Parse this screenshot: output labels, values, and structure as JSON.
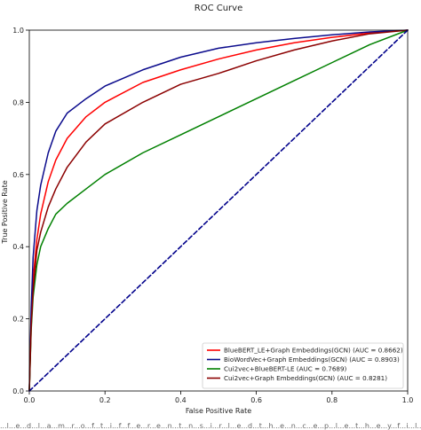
{
  "chart_data": {
    "type": "line",
    "title": "ROC Curve",
    "xlabel": "False Positive Rate",
    "ylabel": "True Positive Rate",
    "xlim": [
      0,
      1
    ],
    "ylim": [
      0,
      1
    ],
    "xticks": [
      "0.0",
      "0.2",
      "0.4",
      "0.6",
      "0.8",
      "1.0"
    ],
    "yticks": [
      "0.0",
      "0.2",
      "0.4",
      "0.6",
      "0.8",
      "1.0"
    ],
    "grid": false,
    "legend_position": "bottom-right",
    "series": [
      {
        "name": "BlueBERT_LE+Graph Embeddings(GCN) (AUC = 0.8662)",
        "color": "#ff0000",
        "x": [
          0,
          0.005,
          0.01,
          0.02,
          0.03,
          0.05,
          0.07,
          0.1,
          0.15,
          0.2,
          0.3,
          0.4,
          0.5,
          0.6,
          0.7,
          0.8,
          0.9,
          1.0
        ],
        "y": [
          0,
          0.2,
          0.31,
          0.42,
          0.49,
          0.58,
          0.64,
          0.7,
          0.76,
          0.8,
          0.855,
          0.89,
          0.92,
          0.945,
          0.965,
          0.98,
          0.992,
          1.0
        ]
      },
      {
        "name": "BioWordVec+Graph Embeddings(GCN) (AUC = 0.8903)",
        "color": "#0a0a8c",
        "x": [
          0,
          0.005,
          0.01,
          0.02,
          0.03,
          0.05,
          0.07,
          0.1,
          0.15,
          0.2,
          0.3,
          0.4,
          0.5,
          0.6,
          0.7,
          0.8,
          0.9,
          1.0
        ],
        "y": [
          0,
          0.23,
          0.37,
          0.5,
          0.57,
          0.66,
          0.72,
          0.77,
          0.81,
          0.845,
          0.89,
          0.925,
          0.95,
          0.965,
          0.977,
          0.987,
          0.995,
          1.0
        ]
      },
      {
        "name": "Cui2vec+BlueBERT-LE (AUC = 0.7689)",
        "color": "#008000",
        "x": [
          0,
          0.005,
          0.01,
          0.02,
          0.03,
          0.05,
          0.07,
          0.1,
          0.15,
          0.2,
          0.3,
          0.4,
          0.5,
          0.6,
          0.7,
          0.8,
          0.9,
          1.0
        ],
        "y": [
          0,
          0.17,
          0.26,
          0.35,
          0.4,
          0.45,
          0.49,
          0.52,
          0.56,
          0.6,
          0.66,
          0.71,
          0.76,
          0.81,
          0.86,
          0.91,
          0.96,
          1.0
        ]
      },
      {
        "name": "Cui2vec+Graph Embeddings(GCN) (AUC = 0.8281)",
        "color": "#8b0000",
        "x": [
          0,
          0.005,
          0.01,
          0.02,
          0.03,
          0.05,
          0.07,
          0.1,
          0.15,
          0.2,
          0.3,
          0.4,
          0.5,
          0.6,
          0.7,
          0.8,
          0.9,
          1.0
        ],
        "y": [
          0,
          0.18,
          0.28,
          0.39,
          0.44,
          0.51,
          0.56,
          0.62,
          0.69,
          0.74,
          0.8,
          0.85,
          0.88,
          0.915,
          0.945,
          0.97,
          0.99,
          1.0
        ]
      },
      {
        "name": "",
        "color": "#00008b",
        "style": "dashed",
        "x": [
          0,
          1
        ],
        "y": [
          0,
          1
        ]
      }
    ]
  },
  "caption": "...l...e...d...l...a...m...r...o...f...t...i...f...f...e...r...e...n...t...n...s...i...r...l...e...d...t...h...e...n...c...e...p...l...e...t...h...e...y...f...i...l...F...E...R...T..."
}
